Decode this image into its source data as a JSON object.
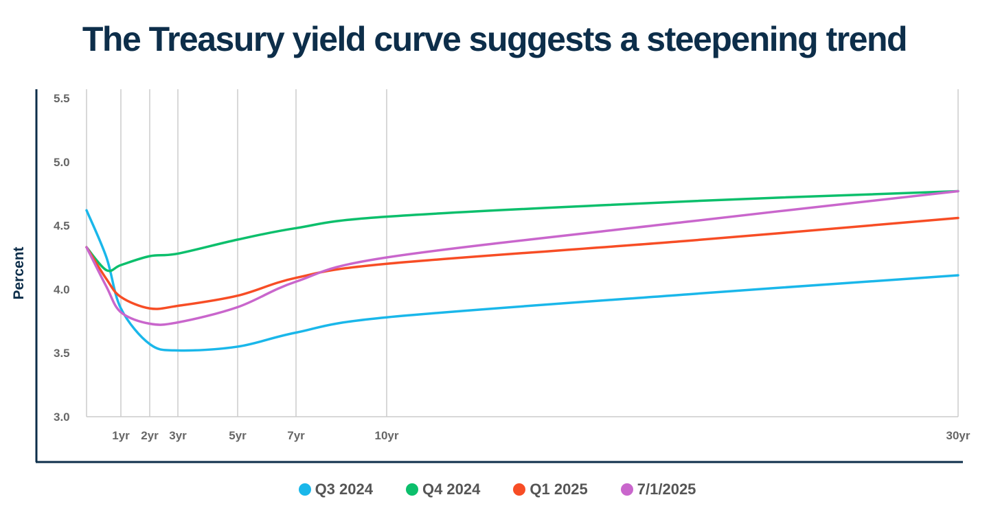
{
  "chart_data": {
    "type": "line",
    "title": "The Treasury yield curve suggests a steepening trend",
    "ylabel": "Percent",
    "xlabel": "",
    "ylim": [
      3.0,
      5.5
    ],
    "yticks": [
      "3.0",
      "3.5",
      "4.0",
      "4.5",
      "5.0",
      "5.5"
    ],
    "xtick_labels": [
      {
        "years": 1,
        "label": "1yr"
      },
      {
        "years": 2,
        "label": "2yr"
      },
      {
        "years": 3,
        "label": "3yr"
      },
      {
        "years": 5,
        "label": "5yr"
      },
      {
        "years": 7,
        "label": "7yr"
      },
      {
        "years": 10,
        "label": "10yr"
      },
      {
        "years": 30,
        "label": "30yr"
      }
    ],
    "grid": "vertical",
    "legend": "bottom",
    "x": [
      0.083,
      0.5,
      1,
      2,
      3,
      5,
      7,
      10,
      20,
      30
    ],
    "series": [
      {
        "name": "Q3 2024",
        "color": "#1ab7ea",
        "values": [
          4.62,
          4.25,
          3.85,
          3.57,
          3.52,
          3.55,
          3.66,
          3.78,
          3.96,
          4.11
        ]
      },
      {
        "name": "Q4 2024",
        "color": "#0cbf6c",
        "values": [
          4.33,
          4.15,
          4.19,
          4.26,
          4.28,
          4.39,
          4.48,
          4.57,
          4.69,
          4.77
        ]
      },
      {
        "name": "Q1 2025",
        "color": "#f74d25",
        "values": [
          4.33,
          4.08,
          3.94,
          3.85,
          3.87,
          3.95,
          4.09,
          4.2,
          4.38,
          4.56
        ]
      },
      {
        "name": "7/1/2025",
        "color": "#c966cc",
        "values": [
          4.33,
          4.02,
          3.82,
          3.73,
          3.74,
          3.86,
          4.06,
          4.25,
          4.53,
          4.77
        ]
      }
    ]
  }
}
